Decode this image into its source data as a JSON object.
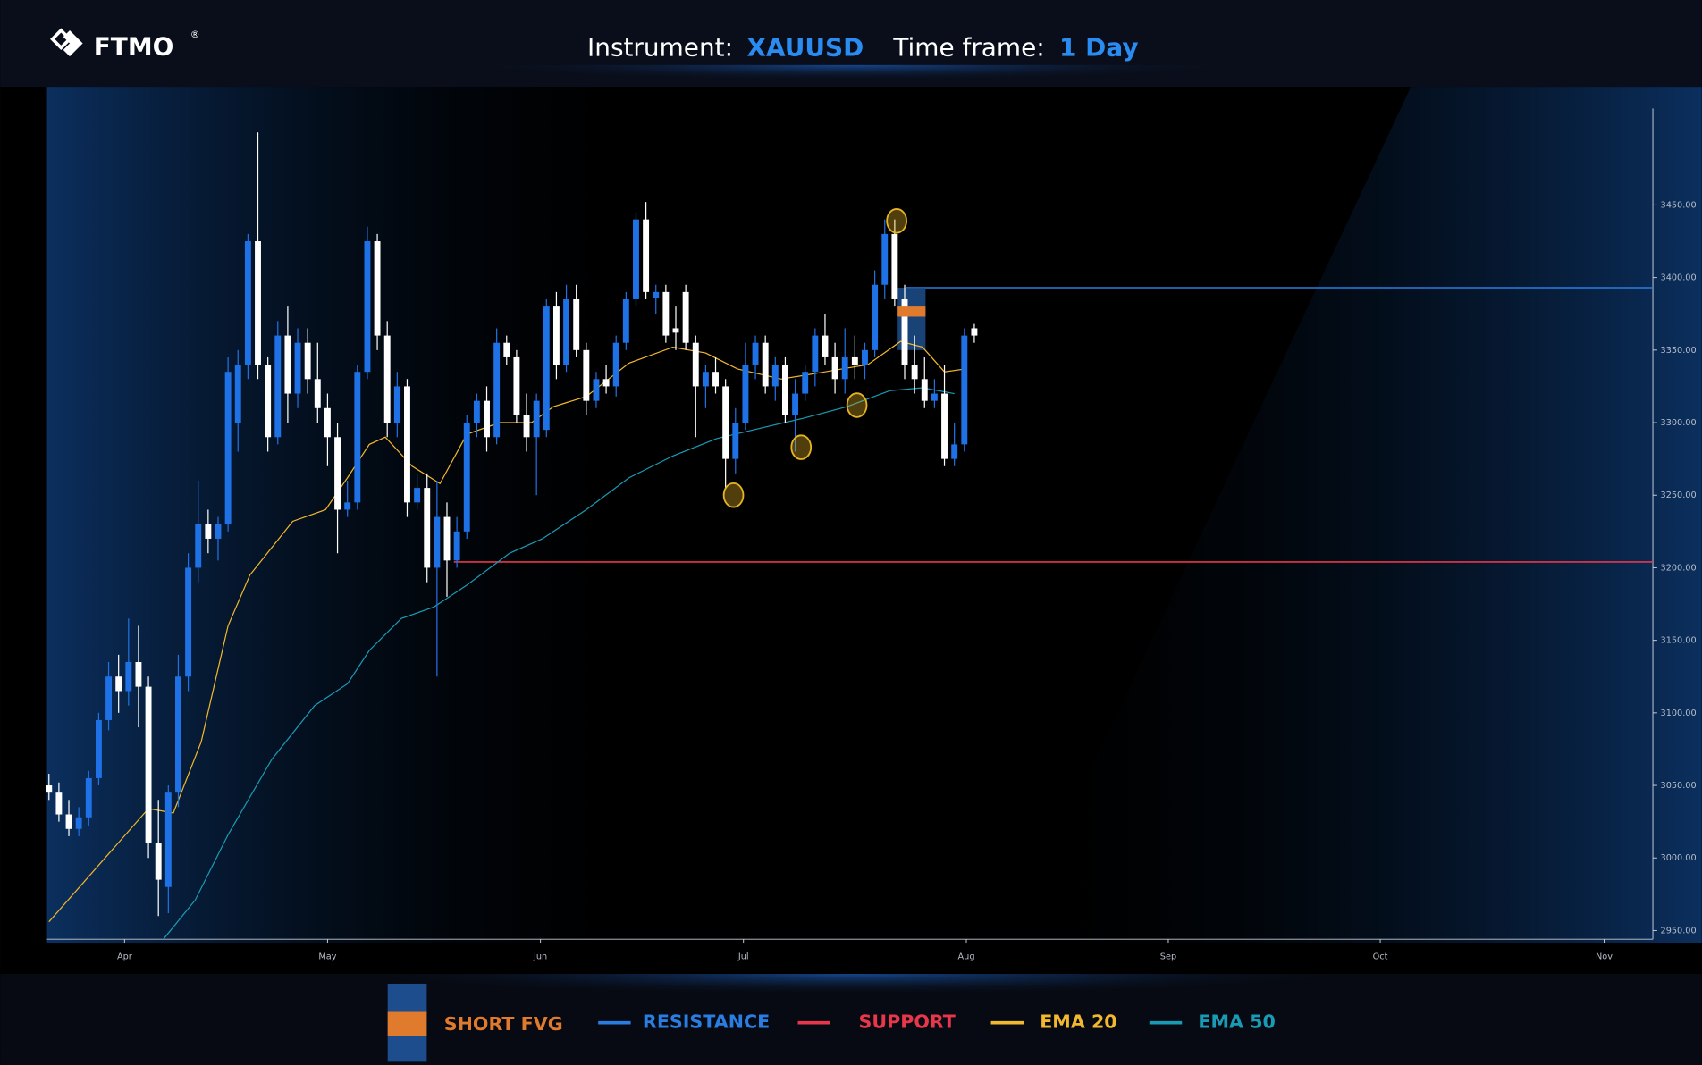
{
  "header": {
    "logo": "FTMO",
    "mark": "®",
    "instrument_label": "Instrument:",
    "instrument": "XAUUSD",
    "timeframe_label": "Time frame:",
    "timeframe": "1 Day"
  },
  "chart_data": {
    "type": "candlestick",
    "up_color": "#1f72e6",
    "down_color": "#ffffff",
    "open": [
      3050,
      3045,
      3030,
      3020,
      3028,
      3055,
      3095,
      3125,
      3115,
      3135,
      3118,
      3010,
      2980,
      3045,
      3125,
      3200,
      3230,
      3220,
      3230,
      3300,
      3340,
      3425,
      3340,
      3290,
      3360,
      3320,
      3355,
      3330,
      3310,
      3290,
      3240,
      3245,
      3335,
      3425,
      3360,
      3300,
      3325,
      3245,
      3255,
      3200,
      3235,
      3205,
      3225,
      3300,
      3315,
      3290,
      3355,
      3345,
      3305,
      3290,
      3295,
      3380,
      3340,
      3385,
      3350,
      3315,
      3330,
      3325,
      3355,
      3385,
      3440,
      3386,
      3390,
      3365,
      3390,
      3355,
      3325,
      3335,
      3325,
      3275,
      3300,
      3340,
      3355,
      3325,
      3340,
      3305,
      3320,
      3335,
      3360,
      3345,
      3330,
      3345,
      3340,
      3350,
      3395,
      3430,
      3385,
      3340,
      3330,
      3315,
      3320,
      3275,
      3285,
      3365
    ],
    "high": [
      3058,
      3052,
      3040,
      3035,
      3060,
      3100,
      3135,
      3140,
      3165,
      3160,
      3125,
      3040,
      3050,
      3140,
      3210,
      3260,
      3240,
      3235,
      3345,
      3350,
      3430,
      3500,
      3345,
      3370,
      3380,
      3365,
      3365,
      3355,
      3320,
      3300,
      3260,
      3340,
      3435,
      3430,
      3370,
      3335,
      3330,
      3265,
      3265,
      3260,
      3245,
      3235,
      3305,
      3320,
      3325,
      3365,
      3360,
      3350,
      3320,
      3320,
      3385,
      3390,
      3395,
      3395,
      3355,
      3335,
      3340,
      3360,
      3390,
      3445,
      3452,
      3395,
      3395,
      3380,
      3395,
      3360,
      3340,
      3345,
      3330,
      3310,
      3355,
      3360,
      3360,
      3345,
      3345,
      3330,
      3340,
      3365,
      3375,
      3355,
      3365,
      3360,
      3355,
      3405,
      3440,
      3440,
      3395,
      3360,
      3345,
      3330,
      3340,
      3300,
      3365,
      3368
    ],
    "low": [
      3040,
      3025,
      3015,
      3015,
      3022,
      3050,
      3088,
      3100,
      3105,
      3090,
      3000,
      2960,
      2962,
      3035,
      3115,
      3190,
      3210,
      3205,
      3225,
      3280,
      3330,
      3330,
      3280,
      3285,
      3300,
      3310,
      3320,
      3300,
      3270,
      3210,
      3235,
      3240,
      3330,
      3350,
      3290,
      3290,
      3235,
      3240,
      3190,
      3125,
      3180,
      3200,
      3220,
      3290,
      3280,
      3285,
      3340,
      3300,
      3280,
      3250,
      3290,
      3330,
      3335,
      3345,
      3305,
      3310,
      3320,
      3318,
      3350,
      3380,
      3385,
      3375,
      3355,
      3350,
      3350,
      3290,
      3310,
      3320,
      3255,
      3265,
      3295,
      3330,
      3320,
      3315,
      3300,
      3280,
      3315,
      3325,
      3340,
      3320,
      3320,
      3330,
      3330,
      3345,
      3385,
      3380,
      3330,
      3320,
      3310,
      3310,
      3270,
      3270,
      3280,
      3355
    ],
    "close": [
      3045,
      3030,
      3020,
      3028,
      3055,
      3095,
      3125,
      3115,
      3135,
      3118,
      3010,
      2985,
      3045,
      3125,
      3200,
      3230,
      3220,
      3230,
      3335,
      3340,
      3425,
      3340,
      3290,
      3360,
      3320,
      3355,
      3330,
      3310,
      3290,
      3240,
      3245,
      3335,
      3425,
      3360,
      3300,
      3325,
      3245,
      3255,
      3200,
      3235,
      3205,
      3225,
      3300,
      3315,
      3290,
      3355,
      3345,
      3305,
      3290,
      3315,
      3380,
      3340,
      3385,
      3350,
      3315,
      3330,
      3325,
      3355,
      3385,
      3440,
      3390,
      3390,
      3360,
      3362,
      3355,
      3325,
      3335,
      3325,
      3275,
      3300,
      3340,
      3355,
      3325,
      3340,
      3305,
      3320,
      3335,
      3360,
      3345,
      3330,
      3345,
      3340,
      3350,
      3395,
      3430,
      3385,
      3340,
      3330,
      3315,
      3320,
      3275,
      3285,
      3360,
      3360
    ],
    "xlim": [
      -0.2,
      161.2
    ],
    "xticks": [
      {
        "value": 7.6,
        "label": "Apr"
      },
      {
        "value": 28.0,
        "label": "May"
      },
      {
        "value": 49.4,
        "label": "Jun"
      },
      {
        "value": 69.8,
        "label": "Jul"
      },
      {
        "value": 92.2,
        "label": "Aug"
      },
      {
        "value": 112.5,
        "label": "Sep"
      },
      {
        "value": 133.8,
        "label": "Oct"
      },
      {
        "value": 156.3,
        "label": "Nov"
      }
    ],
    "ylim": [
      2944,
      3516
    ],
    "yticks": [
      {
        "value": 2950,
        "label": "2950.00"
      },
      {
        "value": 3000,
        "label": "3000.00"
      },
      {
        "value": 3050,
        "label": "3050.00"
      },
      {
        "value": 3100,
        "label": "3100.00"
      },
      {
        "value": 3150,
        "label": "3150.00"
      },
      {
        "value": 3200,
        "label": "3200.00"
      },
      {
        "value": 3250,
        "label": "3250.00"
      },
      {
        "value": 3300,
        "label": "3300.00"
      },
      {
        "value": 3350,
        "label": "3350.00"
      },
      {
        "value": 3400,
        "label": "3400.00"
      },
      {
        "value": 3450,
        "label": "3450.00"
      }
    ],
    "series": [
      {
        "name": "RESISTANCE",
        "color": "#2a7de1",
        "x": [
          86.1,
          161.2
        ],
        "values": [
          3393,
          3393
        ]
      },
      {
        "name": "SUPPORT",
        "color": "#e8374a",
        "x": [
          40.7,
          161.2
        ],
        "values": [
          3204,
          3204
        ]
      },
      {
        "name": "EMA 20",
        "color": "#f2b82e",
        "x": [
          0,
          10.0,
          12.5,
          15.3,
          18,
          20.2,
          24.5,
          27.8,
          30,
          32.2,
          33.8,
          36.5,
          39.3,
          42,
          45.3,
          48.5,
          50.7,
          54,
          58.3,
          62.7,
          66,
          69.2,
          73.6,
          78,
          82.3,
          85.6,
          87.8,
          90,
          92.1
        ],
        "values": [
          2956,
          3034,
          3031,
          3080,
          3160,
          3195,
          3232,
          3240,
          3262,
          3285,
          3290,
          3270,
          3258,
          3292,
          3300,
          3300,
          3311,
          3318,
          3341,
          3352,
          3348,
          3337,
          3330,
          3335,
          3340,
          3356,
          3352,
          3335,
          3337
        ]
      },
      {
        "name": "EMA 50",
        "color": "#1a9bb5",
        "x": [
          11.5,
          14.7,
          18,
          22.4,
          26.7,
          30,
          32.2,
          35.4,
          38.7,
          42,
          46.3,
          49.6,
          54,
          58.3,
          62.7,
          67.1,
          71.4,
          75.8,
          80.2,
          84.5,
          87.8,
          91
        ],
        "values": [
          2944,
          2971,
          3016,
          3068,
          3105,
          3120,
          3143,
          3165,
          3173,
          3188,
          3210,
          3220,
          3240,
          3262,
          3277,
          3289,
          3296,
          3303,
          3311,
          3322,
          3324,
          3320
        ]
      }
    ],
    "fvg": {
      "name": "SHORT FVG",
      "zone_color": "#1d4d8c",
      "gap_color": "#e07a2c",
      "x": [
        85.3,
        88.1
      ],
      "zone": [
        3350,
        3393
      ],
      "gap": [
        3373,
        3380
      ]
    },
    "markers": {
      "color": "#e6b422",
      "x": [
        68.8,
        75.6,
        81.2,
        85.2
      ],
      "values": [
        3250,
        3283,
        3312,
        3439
      ]
    }
  }
}
